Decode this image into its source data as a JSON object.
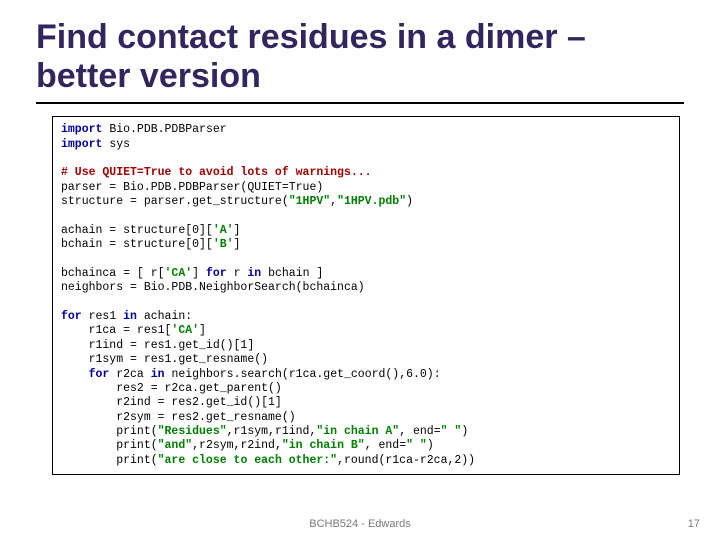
{
  "title": "Find contact residues in a dimer – better version",
  "footer": "BCHB524 - Edwards",
  "pagenum": "17",
  "code": {
    "l01a": "import",
    "l01b": " Bio.PDB.PDBParser",
    "l02a": "import",
    "l02b": " sys",
    "l03": "# Use QUIET=True to avoid lots of warnings...",
    "l04": "parser = Bio.PDB.PDBParser(QUIET=True)",
    "l05a": "structure = parser.get_structure(",
    "l05b": "\"1HPV\"",
    "l05c": ",",
    "l05d": "\"1HPV.pdb\"",
    "l05e": ")",
    "l06a": "achain = structure[0][",
    "l06b": "'A'",
    "l06c": "]",
    "l07a": "bchain = structure[0][",
    "l07b": "'B'",
    "l07c": "]",
    "l08a": "bchainca = [ r[",
    "l08b": "'CA'",
    "l08c": "] ",
    "l08d": "for",
    "l08e": " r ",
    "l08f": "in",
    "l08g": " bchain ]",
    "l09": "neighbors = Bio.PDB.NeighborSearch(bchainca)",
    "l10a": "for",
    "l10b": " res1 ",
    "l10c": "in",
    "l10d": " achain:",
    "l11a": "    r1ca = res1[",
    "l11b": "'CA'",
    "l11c": "]",
    "l12": "    r1ind = res1.get_id()[1]",
    "l13": "    r1sym = res1.get_resname()",
    "l14a": "    ",
    "l14b": "for",
    "l14c": " r2ca ",
    "l14d": "in",
    "l14e": " neighbors.search(r1ca.get_coord(),6.0):",
    "l15": "        res2 = r2ca.get_parent()",
    "l16": "        r2ind = res2.get_id()[1]",
    "l17": "        r2sym = res2.get_resname()",
    "l18a": "        print(",
    "l18b": "\"Residues\"",
    "l18c": ",r1sym,r1ind,",
    "l18d": "\"in chain A\"",
    "l18e": ", end=",
    "l18f": "\" \"",
    "l18g": ")",
    "l19a": "        print(",
    "l19b": "\"and\"",
    "l19c": ",r2sym,r2ind,",
    "l19d": "\"in chain B\"",
    "l19e": ", end=",
    "l19f": "\" \"",
    "l19g": ")",
    "l20a": "        print(",
    "l20b": "\"are close to each other:\"",
    "l20c": ",round(r1ca-r2ca,2))"
  }
}
